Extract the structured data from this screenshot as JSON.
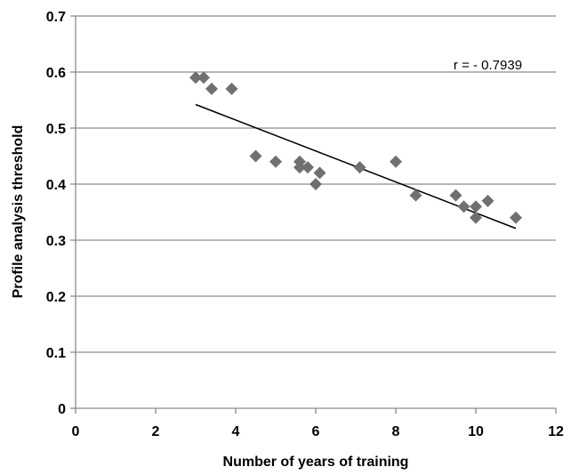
{
  "chart_data": {
    "type": "scatter",
    "xlabel": "Number of years of training",
    "ylabel": "Profile analysis threshold",
    "xlim": [
      0,
      12
    ],
    "ylim": [
      0,
      0.7
    ],
    "xticks": [
      0,
      2,
      4,
      6,
      8,
      10,
      12
    ],
    "yticks": [
      0,
      0.1,
      0.2,
      0.3,
      0.4,
      0.5,
      0.6,
      0.7
    ],
    "xtick_labels": [
      "0",
      "2",
      "4",
      "6",
      "8",
      "10",
      "12"
    ],
    "ytick_labels": [
      "0",
      "0.1",
      "0.2",
      "0.3",
      "0.4",
      "0.5",
      "0.6",
      "0.7"
    ],
    "grid": "horizontal",
    "marker": "diamond",
    "marker_color": "#707070",
    "line_color": "#000000",
    "grid_color": "#8c8c8c",
    "points": [
      {
        "x": 3.0,
        "y": 0.59
      },
      {
        "x": 3.2,
        "y": 0.59
      },
      {
        "x": 3.4,
        "y": 0.57
      },
      {
        "x": 3.9,
        "y": 0.57
      },
      {
        "x": 4.5,
        "y": 0.45
      },
      {
        "x": 5.0,
        "y": 0.44
      },
      {
        "x": 5.6,
        "y": 0.44
      },
      {
        "x": 5.6,
        "y": 0.43
      },
      {
        "x": 5.8,
        "y": 0.43
      },
      {
        "x": 6.0,
        "y": 0.4
      },
      {
        "x": 6.1,
        "y": 0.42
      },
      {
        "x": 7.1,
        "y": 0.43
      },
      {
        "x": 8.0,
        "y": 0.44
      },
      {
        "x": 8.5,
        "y": 0.38
      },
      {
        "x": 9.5,
        "y": 0.38
      },
      {
        "x": 9.7,
        "y": 0.36
      },
      {
        "x": 10.0,
        "y": 0.36
      },
      {
        "x": 10.0,
        "y": 0.34
      },
      {
        "x": 10.3,
        "y": 0.37
      },
      {
        "x": 11.0,
        "y": 0.34
      }
    ],
    "trendline": {
      "type": "linear",
      "x": [
        3.0,
        11.0
      ],
      "y": [
        0.542,
        0.321
      ]
    },
    "annotations": [
      {
        "text": "r = - 0.7939",
        "x": 10.3,
        "y": 0.605
      }
    ]
  }
}
